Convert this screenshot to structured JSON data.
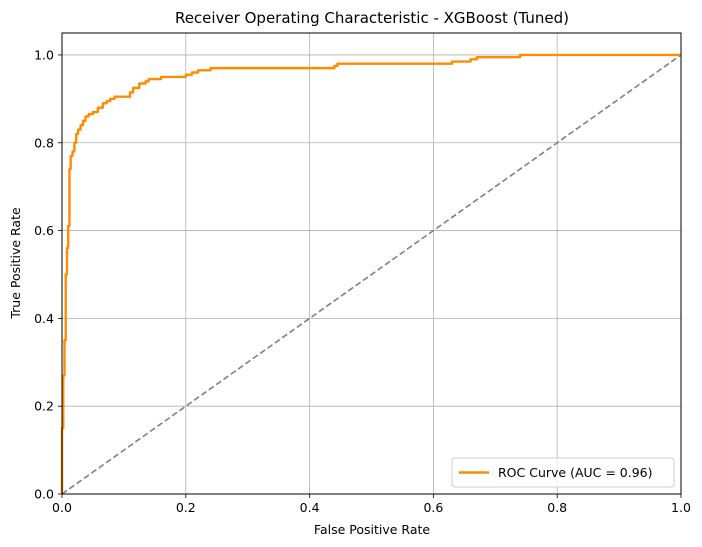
{
  "chart_data": {
    "type": "line",
    "title": "Receiver Operating Characteristic - XGBoost (Tuned)",
    "xlabel": "False Positive Rate",
    "ylabel": "True Positive Rate",
    "xlim": [
      0.0,
      1.0
    ],
    "ylim": [
      0.0,
      1.05
    ],
    "x_ticks": [
      "0.0",
      "0.2",
      "0.4",
      "0.6",
      "0.8",
      "1.0"
    ],
    "y_ticks": [
      "0.0",
      "0.2",
      "0.4",
      "0.6",
      "0.8",
      "1.0"
    ],
    "grid": true,
    "legend_position": "bottom-right",
    "colors": {
      "roc": "#ff8c00",
      "diagonal": "#808080",
      "grid": "#b0b0b0"
    },
    "series": [
      {
        "name": "ROC Curve (AUC = 0.96)",
        "style": "solid",
        "x": [
          0.0,
          0.0,
          0.002,
          0.002,
          0.004,
          0.004,
          0.006,
          0.006,
          0.008,
          0.008,
          0.01,
          0.01,
          0.012,
          0.012,
          0.014,
          0.014,
          0.017,
          0.017,
          0.02,
          0.02,
          0.023,
          0.023,
          0.026,
          0.026,
          0.03,
          0.03,
          0.034,
          0.034,
          0.038,
          0.038,
          0.043,
          0.043,
          0.05,
          0.05,
          0.058,
          0.058,
          0.066,
          0.066,
          0.072,
          0.072,
          0.078,
          0.078,
          0.085,
          0.085,
          0.11,
          0.11,
          0.115,
          0.115,
          0.125,
          0.125,
          0.135,
          0.135,
          0.14,
          0.14,
          0.16,
          0.16,
          0.2,
          0.2,
          0.21,
          0.21,
          0.22,
          0.22,
          0.24,
          0.24,
          0.44,
          0.44,
          0.445,
          0.445,
          0.63,
          0.63,
          0.66,
          0.66,
          0.67,
          0.67,
          0.74,
          0.74,
          1.0
        ],
        "y": [
          0.0,
          0.15,
          0.15,
          0.27,
          0.27,
          0.35,
          0.35,
          0.5,
          0.5,
          0.56,
          0.56,
          0.61,
          0.61,
          0.74,
          0.74,
          0.77,
          0.77,
          0.78,
          0.78,
          0.8,
          0.8,
          0.82,
          0.82,
          0.83,
          0.83,
          0.84,
          0.84,
          0.85,
          0.85,
          0.86,
          0.86,
          0.865,
          0.865,
          0.87,
          0.87,
          0.88,
          0.88,
          0.89,
          0.89,
          0.895,
          0.895,
          0.9,
          0.9,
          0.905,
          0.905,
          0.915,
          0.915,
          0.925,
          0.925,
          0.935,
          0.935,
          0.94,
          0.94,
          0.945,
          0.945,
          0.95,
          0.95,
          0.955,
          0.955,
          0.96,
          0.96,
          0.965,
          0.965,
          0.97,
          0.97,
          0.975,
          0.975,
          0.98,
          0.98,
          0.985,
          0.985,
          0.99,
          0.99,
          0.995,
          0.995,
          1.0,
          1.0
        ]
      },
      {
        "style": "dashed",
        "x": [
          0.0,
          1.0
        ],
        "y": [
          0.0,
          1.0
        ]
      }
    ]
  }
}
